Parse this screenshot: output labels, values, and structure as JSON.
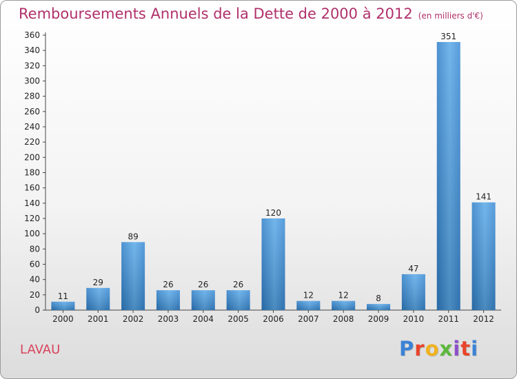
{
  "header": {
    "title": "Remboursements Annuels de la Dette de 2000 à 2012",
    "subtitle": "(en milliers d'€)"
  },
  "footer": {
    "commune": "LAVAU",
    "logo": [
      "P",
      "r",
      "o",
      "x",
      "i",
      "t",
      "i"
    ],
    "logo_colors": [
      "#3b82d6",
      "#e8442b",
      "#f0b21e",
      "#5cb83b",
      "#8b4fc8",
      "#e8442b",
      "#3b82d6"
    ]
  },
  "chart_data": {
    "type": "bar",
    "categories": [
      "2000",
      "2001",
      "2002",
      "2003",
      "2004",
      "2005",
      "2006",
      "2007",
      "2008",
      "2009",
      "2010",
      "2011",
      "2012"
    ],
    "values": [
      11,
      29,
      89,
      26,
      26,
      26,
      120,
      12,
      12,
      8,
      47,
      351,
      141
    ],
    "data_labels": [
      "11",
      "29",
      "89",
      "26",
      "26",
      "26",
      "120",
      "12",
      "12",
      "8",
      "47",
      "351",
      "141"
    ],
    "yticks": [
      "0",
      "20",
      "40",
      "60",
      "80",
      "100",
      "120",
      "140",
      "160",
      "180",
      "200",
      "220",
      "240",
      "260",
      "280",
      "300",
      "320",
      "340",
      "360"
    ],
    "ylim": [
      0,
      360
    ],
    "grid": false,
    "bar_color": "#3d8fd8"
  }
}
